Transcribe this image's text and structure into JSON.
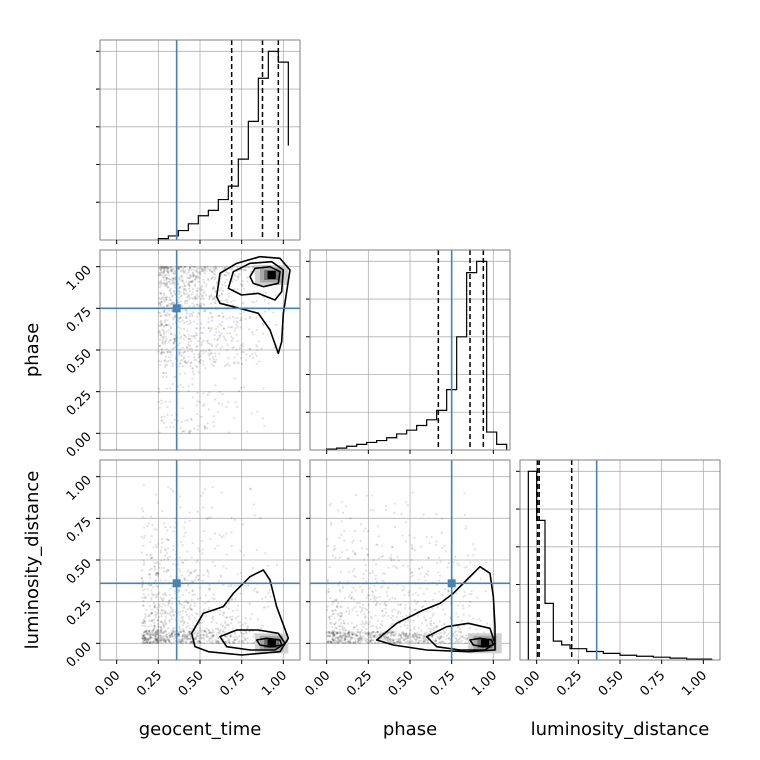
{
  "chart_data": {
    "type": "corner",
    "parameters": [
      "geocent_time",
      "phase",
      "luminosity_distance"
    ],
    "axis_labels": {
      "x": [
        "geocent_time",
        "phase",
        "luminosity_distance"
      ],
      "y": [
        "phase",
        "luminosity_distance"
      ]
    },
    "tick_labels": [
      "0.00",
      "0.25",
      "0.50",
      "0.75",
      "1.00"
    ],
    "axis_ranges": [
      [
        -0.1,
        1.1
      ],
      [
        -0.1,
        1.1
      ],
      [
        -0.1,
        1.1
      ]
    ],
    "grid": true,
    "injection": [
      0.36,
      0.75,
      0.36
    ],
    "quantiles": [
      [
        0.69,
        0.875,
        0.97
      ],
      [
        0.67,
        0.86,
        0.94
      ],
      [
        0.005,
        0.015,
        0.21
      ]
    ],
    "histograms": [
      {
        "parameter": "geocent_time",
        "bin_edges": [
          0.25,
          0.31,
          0.37,
          0.43,
          0.49,
          0.55,
          0.61,
          0.67,
          0.73,
          0.79,
          0.85,
          0.91,
          0.97,
          1.03
        ],
        "counts": [
          1,
          3,
          7,
          12,
          18,
          22,
          30,
          40,
          60,
          88,
          120,
          140,
          132,
          70
        ]
      },
      {
        "parameter": "phase",
        "bin_edges": [
          0.0,
          0.06,
          0.12,
          0.18,
          0.24,
          0.3,
          0.36,
          0.42,
          0.48,
          0.54,
          0.6,
          0.66,
          0.72,
          0.78,
          0.84,
          0.9,
          0.96,
          1.02,
          1.08
        ],
        "counts": [
          1,
          2,
          4,
          6,
          8,
          10,
          13,
          17,
          21,
          26,
          32,
          42,
          64,
          120,
          188,
          200,
          19,
          6
        ]
      },
      {
        "parameter": "luminosity_distance",
        "bin_edges": [
          -0.05,
          0.0,
          0.05,
          0.1,
          0.15,
          0.2,
          0.3,
          0.4,
          0.5,
          0.6,
          0.7,
          0.8,
          0.9,
          1.0,
          1.05
        ],
        "counts": [
          200,
          148,
          60,
          20,
          16,
          12,
          9,
          7,
          5,
          4,
          3,
          2,
          1,
          1
        ]
      }
    ],
    "pairs": [
      {
        "x": "geocent_time",
        "y": "phase",
        "peak": [
          0.93,
          0.95
        ],
        "contours": [
          [
            [
              0.6,
              0.82
            ],
            [
              0.62,
              0.96
            ],
            [
              0.72,
              1.02
            ],
            [
              0.86,
              1.06
            ],
            [
              0.98,
              1.05
            ],
            [
              1.04,
              0.98
            ],
            [
              1.02,
              0.85
            ],
            [
              1.0,
              0.72
            ],
            [
              0.99,
              0.55
            ],
            [
              0.97,
              0.48
            ],
            [
              0.92,
              0.62
            ],
            [
              0.85,
              0.72
            ],
            [
              0.7,
              0.76
            ],
            [
              0.62,
              0.78
            ]
          ],
          [
            [
              0.67,
              0.87
            ],
            [
              0.7,
              0.97
            ],
            [
              0.8,
              1.02
            ],
            [
              0.93,
              1.03
            ],
            [
              1.0,
              0.98
            ],
            [
              0.99,
              0.85
            ],
            [
              0.95,
              0.8
            ],
            [
              0.85,
              0.84
            ],
            [
              0.75,
              0.83
            ]
          ],
          [
            [
              0.8,
              0.94
            ],
            [
              0.83,
              0.99
            ],
            [
              0.92,
              1.0
            ],
            [
              0.98,
              0.97
            ],
            [
              0.97,
              0.9
            ],
            [
              0.88,
              0.88
            ],
            [
              0.82,
              0.9
            ]
          ]
        ]
      },
      {
        "x": "geocent_time",
        "y": "luminosity_distance",
        "peak": [
          0.93,
          0.0
        ],
        "contours": [
          [
            [
              0.45,
              0.06
            ],
            [
              0.52,
              0.18
            ],
            [
              0.64,
              0.22
            ],
            [
              0.7,
              0.3
            ],
            [
              0.8,
              0.4
            ],
            [
              0.88,
              0.44
            ],
            [
              0.92,
              0.38
            ],
            [
              0.96,
              0.22
            ],
            [
              1.03,
              0.03
            ],
            [
              0.98,
              -0.05
            ],
            [
              0.75,
              -0.07
            ],
            [
              0.55,
              -0.05
            ],
            [
              0.47,
              -0.02
            ]
          ],
          [
            [
              0.62,
              0.04
            ],
            [
              0.72,
              0.08
            ],
            [
              0.85,
              0.08
            ],
            [
              0.97,
              0.06
            ],
            [
              1.01,
              0.0
            ],
            [
              0.95,
              -0.04
            ],
            [
              0.8,
              -0.04
            ],
            [
              0.66,
              -0.02
            ]
          ],
          [
            [
              0.84,
              0.02
            ],
            [
              0.9,
              0.03
            ],
            [
              0.98,
              0.02
            ],
            [
              0.99,
              -0.01
            ],
            [
              0.92,
              -0.02
            ],
            [
              0.86,
              -0.01
            ]
          ]
        ]
      },
      {
        "x": "phase",
        "y": "luminosity_distance",
        "peak": [
          0.95,
          0.0
        ],
        "contours": [
          [
            [
              0.3,
              0.02
            ],
            [
              0.42,
              0.12
            ],
            [
              0.58,
              0.2
            ],
            [
              0.68,
              0.24
            ],
            [
              0.76,
              0.3
            ],
            [
              0.84,
              0.38
            ],
            [
              0.92,
              0.46
            ],
            [
              0.98,
              0.42
            ],
            [
              1.0,
              0.28
            ],
            [
              1.01,
              0.1
            ],
            [
              1.01,
              -0.04
            ],
            [
              0.85,
              -0.05
            ],
            [
              0.6,
              -0.04
            ],
            [
              0.4,
              -0.01
            ]
          ],
          [
            [
              0.6,
              0.04
            ],
            [
              0.72,
              0.1
            ],
            [
              0.85,
              0.12
            ],
            [
              0.98,
              0.09
            ],
            [
              1.01,
              0.0
            ],
            [
              0.95,
              -0.04
            ],
            [
              0.8,
              -0.04
            ],
            [
              0.66,
              -0.02
            ]
          ],
          [
            [
              0.86,
              0.02
            ],
            [
              0.92,
              0.03
            ],
            [
              0.99,
              0.02
            ],
            [
              1.0,
              -0.01
            ],
            [
              0.94,
              -0.02
            ],
            [
              0.88,
              -0.01
            ]
          ]
        ]
      }
    ]
  }
}
